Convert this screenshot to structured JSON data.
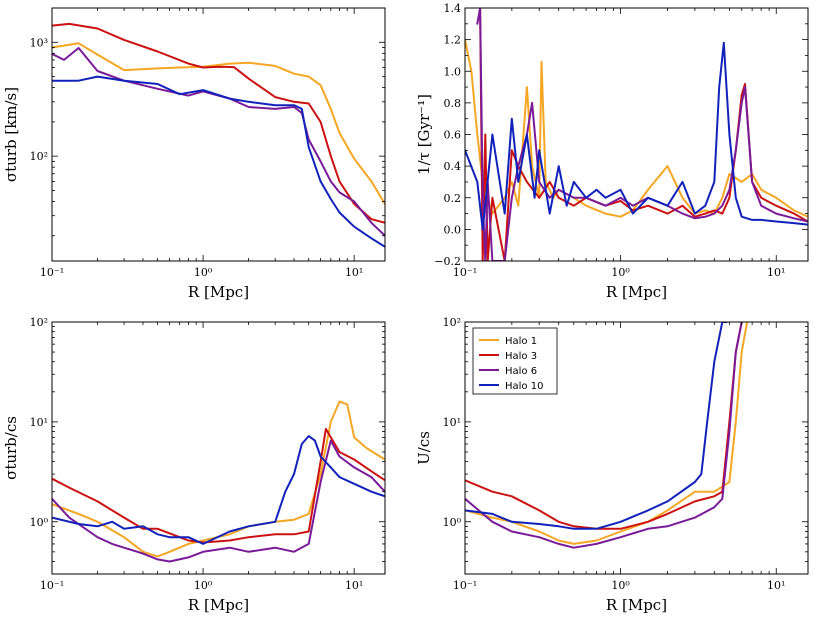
{
  "colors": {
    "Halo 1": "#f5a623",
    "Halo 3": "#cc1111",
    "Halo 6": "#7a1a99",
    "Halo 10": "#1122bb"
  },
  "chart_data": [
    {
      "type": "line",
      "title": "",
      "xlabel": "R [Mpc]",
      "ylabel": "σturb [km/s]",
      "xscale": "log",
      "yscale": "log",
      "xlim": [
        0.1,
        16
      ],
      "ylim": [
        12,
        2000
      ],
      "xticks": [
        {
          "v": 0.1,
          "label": "10⁻¹"
        },
        {
          "v": 1,
          "label": "10⁰"
        },
        {
          "v": 10,
          "label": "10¹"
        }
      ],
      "yticks": [
        {
          "v": 100,
          "label": "10²"
        },
        {
          "v": 1000,
          "label": "10³"
        }
      ],
      "series": [
        {
          "name": "Halo 1",
          "x": [
            0.1,
            0.15,
            0.2,
            0.3,
            0.5,
            0.7,
            1,
            1.5,
            2,
            3,
            4,
            5,
            6,
            7,
            8,
            10,
            13,
            16
          ],
          "y": [
            900,
            980,
            780,
            570,
            590,
            600,
            610,
            650,
            660,
            620,
            530,
            500,
            420,
            260,
            160,
            95,
            60,
            38
          ]
        },
        {
          "name": "Halo 3",
          "x": [
            0.1,
            0.13,
            0.2,
            0.3,
            0.5,
            0.8,
            1,
            1.3,
            1.6,
            2,
            3,
            4,
            5,
            6,
            7,
            8,
            10,
            13,
            16
          ],
          "y": [
            1400,
            1450,
            1320,
            1050,
            830,
            650,
            600,
            610,
            605,
            480,
            330,
            300,
            290,
            200,
            100,
            60,
            38,
            28,
            26
          ]
        },
        {
          "name": "Halo 6",
          "x": [
            0.1,
            0.12,
            0.15,
            0.2,
            0.3,
            0.5,
            0.8,
            1,
            1.5,
            2,
            3,
            4,
            4.5,
            5,
            6,
            7,
            8,
            10,
            13,
            16
          ],
          "y": [
            790,
            700,
            890,
            560,
            460,
            390,
            340,
            370,
            320,
            270,
            260,
            270,
            240,
            140,
            90,
            60,
            48,
            40,
            26,
            20
          ]
        },
        {
          "name": "Halo 10",
          "x": [
            0.1,
            0.15,
            0.2,
            0.3,
            0.5,
            0.7,
            1,
            1.5,
            2,
            3,
            4,
            4.5,
            5,
            6,
            7,
            8,
            10,
            13,
            16
          ],
          "y": [
            460,
            460,
            500,
            460,
            430,
            350,
            380,
            320,
            300,
            280,
            280,
            260,
            120,
            60,
            42,
            32,
            24,
            19,
            16
          ]
        }
      ]
    },
    {
      "type": "line",
      "title": "",
      "xlabel": "R [Mpc]",
      "ylabel": "1/τ [Gyr⁻¹]",
      "xscale": "log",
      "yscale": "linear",
      "xlim": [
        0.1,
        16
      ],
      "ylim": [
        -0.2,
        1.4
      ],
      "xticks": [
        {
          "v": 0.1,
          "label": "10⁻¹"
        },
        {
          "v": 1,
          "label": "10⁰"
        },
        {
          "v": 10,
          "label": "10¹"
        }
      ],
      "yticks": [
        {
          "v": -0.2,
          "label": "−0.2"
        },
        {
          "v": 0,
          "label": "0.0"
        },
        {
          "v": 0.2,
          "label": "0.2"
        },
        {
          "v": 0.4,
          "label": "0.4"
        },
        {
          "v": 0.6,
          "label": "0.6"
        },
        {
          "v": 0.8,
          "label": "0.8"
        },
        {
          "v": 1.0,
          "label": "1.0"
        },
        {
          "v": 1.2,
          "label": "1.2"
        },
        {
          "v": 1.4,
          "label": "1.4"
        }
      ],
      "series": [
        {
          "name": "Halo 1",
          "x": [
            0.1,
            0.11,
            0.12,
            0.13,
            0.15,
            0.18,
            0.2,
            0.22,
            0.25,
            0.27,
            0.3,
            0.31,
            0.33,
            0.37,
            0.4,
            0.5,
            0.6,
            0.8,
            1,
            1.2,
            1.5,
            2,
            2.5,
            3,
            3.5,
            4,
            4.5,
            5,
            6,
            7,
            8,
            10,
            13,
            16
          ],
          "y": [
            1.2,
            1.0,
            0.6,
            0.3,
            0.1,
            0.2,
            0.3,
            0.15,
            0.9,
            0.4,
            0.2,
            1.06,
            0.3,
            0.2,
            0.25,
            0.2,
            0.15,
            0.1,
            0.08,
            0.12,
            0.25,
            0.4,
            0.2,
            0.1,
            0.12,
            0.1,
            0.2,
            0.35,
            0.3,
            0.35,
            0.25,
            0.2,
            0.12,
            0.08
          ]
        },
        {
          "name": "Halo 3",
          "x": [
            0.125,
            0.13,
            0.135,
            0.14,
            0.15,
            0.18,
            0.2,
            0.22,
            0.25,
            0.3,
            0.35,
            0.4,
            0.5,
            0.6,
            0.8,
            1,
            1.2,
            1.5,
            2,
            2.5,
            3,
            3.5,
            4,
            4.5,
            5,
            5.5,
            6,
            6.3,
            7,
            8,
            10,
            13,
            16
          ],
          "y": [
            1.4,
            -0.2,
            0.6,
            -0.2,
            0.2,
            -0.2,
            0.5,
            0.4,
            0.3,
            0.2,
            0.3,
            0.2,
            0.15,
            0.2,
            0.15,
            0.18,
            0.12,
            0.15,
            0.1,
            0.15,
            0.08,
            0.1,
            0.12,
            0.1,
            0.2,
            0.5,
            0.85,
            0.92,
            0.3,
            0.2,
            0.15,
            0.1,
            0.05
          ]
        },
        {
          "name": "Halo 6",
          "x": [
            0.12,
            0.125,
            0.13,
            0.135,
            0.14,
            0.15,
            0.18,
            0.2,
            0.22,
            0.25,
            0.27,
            0.3,
            0.35,
            0.4,
            0.5,
            0.6,
            0.8,
            1,
            1.2,
            1.5,
            2,
            2.5,
            3,
            3.5,
            4,
            4.5,
            5,
            5.5,
            6,
            6.3,
            7,
            8,
            10,
            13,
            16
          ],
          "y": [
            1.3,
            1.4,
            0.2,
            -0.2,
            0.3,
            -0.2,
            -0.2,
            0.2,
            0.4,
            0.6,
            0.8,
            0.3,
            0.2,
            0.25,
            0.2,
            0.2,
            0.15,
            0.2,
            0.15,
            0.2,
            0.15,
            0.1,
            0.07,
            0.08,
            0.1,
            0.15,
            0.25,
            0.5,
            0.8,
            0.9,
            0.3,
            0.15,
            0.1,
            0.07,
            0.05
          ]
        },
        {
          "name": "Halo 10",
          "x": [
            0.1,
            0.12,
            0.13,
            0.15,
            0.18,
            0.2,
            0.22,
            0.25,
            0.28,
            0.3,
            0.35,
            0.4,
            0.45,
            0.5,
            0.6,
            0.7,
            0.8,
            1,
            1.2,
            1.5,
            2,
            2.5,
            3,
            3.5,
            4,
            4.3,
            4.6,
            5,
            5.5,
            6,
            7,
            8,
            10,
            13,
            16
          ],
          "y": [
            0.5,
            0.3,
            0.0,
            0.6,
            0.1,
            0.7,
            0.3,
            0.6,
            0.2,
            0.5,
            0.1,
            0.4,
            0.15,
            0.3,
            0.2,
            0.25,
            0.2,
            0.25,
            0.1,
            0.2,
            0.15,
            0.3,
            0.1,
            0.15,
            0.3,
            0.9,
            1.18,
            0.6,
            0.2,
            0.08,
            0.06,
            0.06,
            0.05,
            0.04,
            0.03
          ]
        }
      ]
    },
    {
      "type": "line",
      "title": "",
      "xlabel": "R [Mpc]",
      "ylabel": "σturb/cs",
      "xscale": "log",
      "yscale": "log",
      "xlim": [
        0.1,
        16
      ],
      "ylim": [
        0.3,
        100
      ],
      "xticks": [
        {
          "v": 0.1,
          "label": "10⁻¹"
        },
        {
          "v": 1,
          "label": "10⁰"
        },
        {
          "v": 10,
          "label": "10¹"
        }
      ],
      "yticks": [
        {
          "v": 1,
          "label": "10⁰"
        },
        {
          "v": 10,
          "label": "10¹"
        },
        {
          "v": 100,
          "label": "10²"
        }
      ],
      "series": [
        {
          "name": "Halo 1",
          "x": [
            0.1,
            0.15,
            0.2,
            0.3,
            0.4,
            0.5,
            0.6,
            0.8,
            1,
            1.5,
            2,
            3,
            4,
            5,
            6,
            7,
            8,
            9,
            10,
            12,
            16
          ],
          "y": [
            1.5,
            1.2,
            1.0,
            0.7,
            0.5,
            0.45,
            0.5,
            0.6,
            0.65,
            0.75,
            0.9,
            1.0,
            1.05,
            1.2,
            3.0,
            10,
            16,
            15,
            7,
            5.5,
            4.2
          ]
        },
        {
          "name": "Halo 3",
          "x": [
            0.1,
            0.13,
            0.2,
            0.3,
            0.4,
            0.5,
            0.7,
            0.8,
            1,
            1.5,
            2,
            3,
            4,
            5,
            6,
            6.5,
            7,
            8,
            10,
            13,
            16
          ],
          "y": [
            2.7,
            2.2,
            1.6,
            1.1,
            0.85,
            0.85,
            0.7,
            0.65,
            0.62,
            0.65,
            0.7,
            0.75,
            0.75,
            0.8,
            4.0,
            8.5,
            7,
            5,
            4.2,
            3.2,
            2.6
          ]
        },
        {
          "name": "Halo 6",
          "x": [
            0.1,
            0.13,
            0.2,
            0.25,
            0.3,
            0.4,
            0.5,
            0.6,
            0.8,
            1,
            1.5,
            2,
            3,
            4,
            5,
            6,
            7,
            8,
            10,
            13,
            16
          ],
          "y": [
            1.7,
            1.1,
            0.7,
            0.6,
            0.55,
            0.48,
            0.42,
            0.4,
            0.44,
            0.5,
            0.55,
            0.5,
            0.55,
            0.5,
            0.6,
            2.5,
            6.5,
            4.5,
            3.5,
            2.8,
            2.0
          ]
        },
        {
          "name": "Halo 10",
          "x": [
            0.1,
            0.15,
            0.2,
            0.25,
            0.3,
            0.4,
            0.5,
            0.6,
            0.8,
            1,
            1.5,
            2,
            3,
            3.5,
            4,
            4.5,
            5,
            5.5,
            6,
            7,
            8,
            10,
            13,
            16
          ],
          "y": [
            1.1,
            0.95,
            0.9,
            1.0,
            0.85,
            0.9,
            0.75,
            0.7,
            0.7,
            0.6,
            0.8,
            0.9,
            1.0,
            2.0,
            3.0,
            6.0,
            7.2,
            6.5,
            4.5,
            3.5,
            2.8,
            2.4,
            2.0,
            1.8
          ]
        }
      ]
    },
    {
      "type": "line",
      "title": "",
      "xlabel": "R [Mpc]",
      "ylabel": "U/cs",
      "xscale": "log",
      "yscale": "log",
      "xlim": [
        0.1,
        16
      ],
      "ylim": [
        0.3,
        100
      ],
      "xticks": [
        {
          "v": 0.1,
          "label": "10⁻¹"
        },
        {
          "v": 1,
          "label": "10⁰"
        },
        {
          "v": 10,
          "label": "10¹"
        }
      ],
      "yticks": [
        {
          "v": 1,
          "label": "10⁰"
        },
        {
          "v": 10,
          "label": "10¹"
        },
        {
          "v": 100,
          "label": "10²"
        }
      ],
      "legend": {
        "placement": "top-left",
        "entries": [
          "Halo 1",
          "Halo 3",
          "Halo 6",
          "Halo 10"
        ]
      },
      "series": [
        {
          "name": "Halo 1",
          "x": [
            0.1,
            0.15,
            0.2,
            0.3,
            0.4,
            0.5,
            0.7,
            1,
            1.5,
            2,
            3,
            4,
            5,
            5.5,
            6,
            6.5
          ],
          "y": [
            1.3,
            1.1,
            1.0,
            0.8,
            0.65,
            0.6,
            0.65,
            0.8,
            1.0,
            1.3,
            2.0,
            2.0,
            2.5,
            10,
            50,
            100
          ]
        },
        {
          "name": "Halo 3",
          "x": [
            0.1,
            0.15,
            0.2,
            0.3,
            0.4,
            0.5,
            0.7,
            1,
            1.5,
            2,
            3,
            4,
            4.5,
            5,
            5.5,
            6
          ],
          "y": [
            2.6,
            2.0,
            1.8,
            1.3,
            1.0,
            0.9,
            0.85,
            0.85,
            1.0,
            1.2,
            1.6,
            1.8,
            2.0,
            10,
            50,
            100
          ]
        },
        {
          "name": "Halo 6",
          "x": [
            0.1,
            0.15,
            0.2,
            0.3,
            0.4,
            0.5,
            0.7,
            1,
            1.5,
            2,
            3,
            4,
            4.5,
            5,
            5.5,
            6
          ],
          "y": [
            1.7,
            1.0,
            0.8,
            0.7,
            0.6,
            0.55,
            0.6,
            0.7,
            0.85,
            0.9,
            1.1,
            1.4,
            1.7,
            8,
            50,
            100
          ]
        },
        {
          "name": "Halo 10",
          "x": [
            0.1,
            0.15,
            0.2,
            0.3,
            0.4,
            0.5,
            0.7,
            1,
            1.5,
            2,
            3,
            3.3,
            3.6,
            4,
            4.5,
            4.8
          ],
          "y": [
            1.3,
            1.2,
            1.0,
            0.95,
            0.9,
            0.85,
            0.85,
            1.0,
            1.3,
            1.6,
            2.5,
            3.0,
            10,
            40,
            100,
            100
          ]
        }
      ]
    }
  ]
}
